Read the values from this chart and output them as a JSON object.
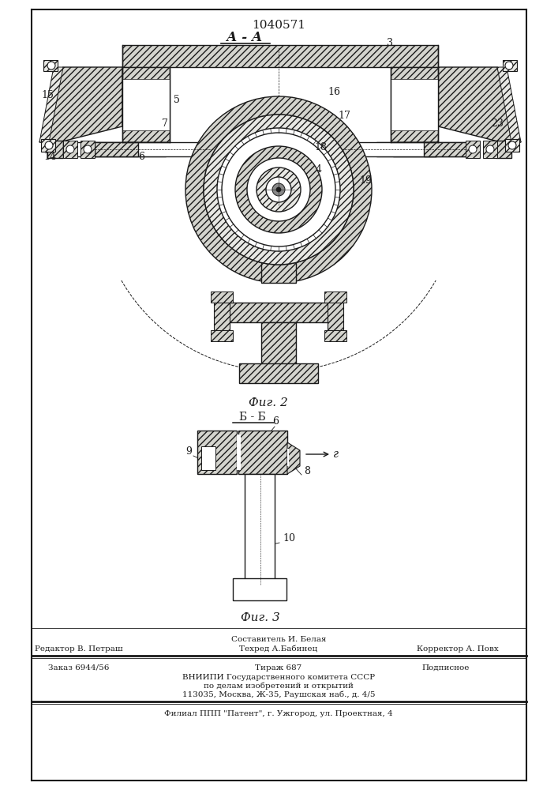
{
  "patent_number": "1040571",
  "fig2_label": "А - А",
  "fig2_caption": "Фиг. 2",
  "fig3_label": "Б - Б",
  "fig3_caption": "Фиг. 3",
  "footer_line1": "Составитель И. Белая",
  "footer_line2_left": "Редактор В. Петраш",
  "footer_line2_mid": "Техред А.Бабинец",
  "footer_line2_right": "Корректор А. Повх",
  "footer_line3_left": "Заказ 6944/56",
  "footer_line3_mid": "Тираж 687",
  "footer_line3_right": "Подписное",
  "footer_line4": "ВНИИПИ Государственного комитета СССР",
  "footer_line5": "по делам изобретений и открытий",
  "footer_line6": "113035, Москва, Ж-35, Раушская наб., д. 4/5",
  "footer_line7": "Филиал ППП \"Патент\", г. Ужгород, ул. Проектная, 4",
  "line_color": "#1a1a1a"
}
